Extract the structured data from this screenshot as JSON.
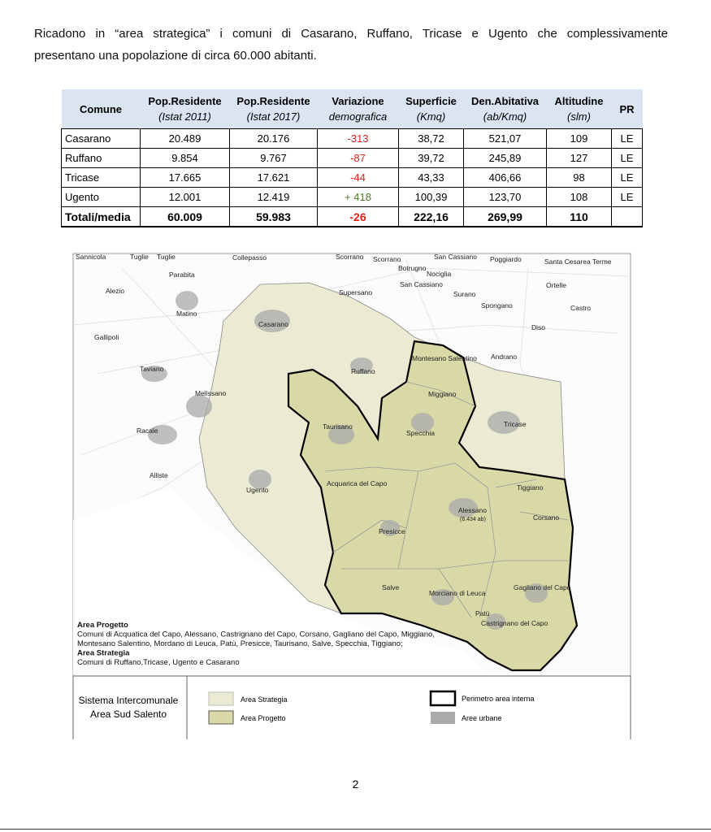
{
  "body": {
    "paragraph": [
      "Ricadono in “area strategica” i comuni di Casarano, Ruffano, Tricase e Ugento che complessivamente",
      "presentano una popolazione di circa 60.000 abitanti."
    ]
  },
  "table": {
    "headers": [
      {
        "title": "Comune"
      },
      {
        "title": "Pop.Residente",
        "sub": "(Istat 2011)"
      },
      {
        "title": "Pop.Residente",
        "sub": "(Istat 2017)"
      },
      {
        "title": "Variazione",
        "sub": "demografica"
      },
      {
        "title": "Superficie",
        "sub": "(Kmq)"
      },
      {
        "title": "Den.Abitativa",
        "sub": "(ab/Kmq)"
      },
      {
        "title": "Altitudine",
        "sub": "(slm)"
      },
      {
        "title": "PR"
      }
    ],
    "rows": [
      [
        "Casarano",
        "20.489",
        "20.176",
        "-313",
        "38,72",
        "521,07",
        "109",
        "LE"
      ],
      [
        "Ruffano",
        "9.854",
        "9.767",
        "-87",
        "39,72",
        "245,89",
        "127",
        "LE"
      ],
      [
        "Tricase",
        "17.665",
        "17.621",
        "-44",
        "43,33",
        "406,66",
        "98",
        "LE"
      ],
      [
        "Ugento",
        "12.001",
        "12.419",
        "+ 418",
        "100,39",
        "123,70",
        "108",
        "LE"
      ]
    ],
    "total": [
      "Totali/media",
      "60.009",
      "59.983",
      "-26",
      "222,16",
      "269,99",
      "110"
    ]
  },
  "map": {
    "labels": [
      "Sannicola",
      "Tuglie",
      "Tuglie",
      "Parabita",
      "Collepasso",
      "Scorrano",
      "Scorrano",
      "San Cassiano",
      "Poggiardo",
      "Santa Cesarea Terme",
      "Botrugno",
      "Nociglia",
      "San Cassiano",
      "Surano",
      "Ortelle",
      "Alezio",
      "Supersano",
      "Spongano",
      "Castro",
      "Matino",
      "Casarano",
      "Diso",
      "Gallipoli",
      "Montesano Salentino",
      "Andrano",
      "Taviano",
      "Ruffano",
      "Miggiano",
      "Melissano",
      "Taurisano",
      "Specchia",
      "Tricase",
      "Racale",
      "Alliste",
      "Acquarica del Capo",
      "Ugento",
      "Tiggiano",
      "Alessano",
      "(6.434 ab)",
      "Corsano",
      "Presicce",
      "Salve",
      "Morciano di Leuca",
      "Gagliano del Capo",
      "Patù",
      "Castrignano del Capo"
    ],
    "caption": [
      {
        "text": "Area Progetto",
        "bold": true
      },
      {
        "text": "Comuni di Acquatica del Capo, Alessano, Castrignano del Capo, Corsano, Gagliano del Capo, Miggiano,"
      },
      {
        "text": "Montesano Salentino, Mordano di Leuca, Patù, Presicce, Taurisano, Salve, Specchia, Tiggiano;"
      },
      {
        "text": "Area Strategia",
        "bold": true
      },
      {
        "text": "Comuni di Ruffano,Tricase, Ugento e Casarano"
      }
    ],
    "legend": {
      "system": [
        "Sistema Intercomunale",
        "Area Sud Salento"
      ],
      "strategia": "Area Strategia",
      "progetto": "Area Progetto",
      "perimetro": "Perimetro area interna",
      "urbane": "Aree urbane"
    }
  },
  "footer": {
    "page": "2"
  }
}
